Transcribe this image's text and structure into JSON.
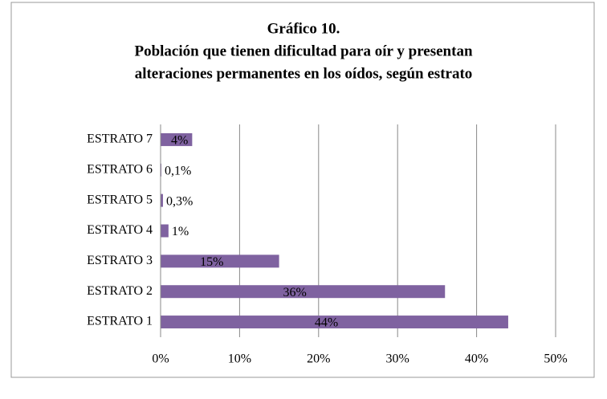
{
  "chart_data": {
    "type": "bar",
    "orientation": "horizontal",
    "title": [
      "Gráfico 10.",
      "Población que tienen dificultad para oír y presentan",
      "alteraciones permanentes en los oídos, según estrato"
    ],
    "categories": [
      "ESTRATO 1",
      "ESTRATO 2",
      "ESTRATO 3",
      "ESTRATO 4",
      "ESTRATO 5",
      "ESTRATO 6",
      "ESTRATO 7"
    ],
    "values": [
      44,
      36,
      15,
      1,
      0.3,
      0.1,
      4
    ],
    "value_labels": [
      "44%",
      "36%",
      "15%",
      "1%",
      "0,3%",
      "0,1%",
      "4%"
    ],
    "color": "#7f62a0",
    "xlim": [
      0,
      50
    ],
    "xticks": [
      {
        "value": 0,
        "label": "0%"
      },
      {
        "value": 10,
        "label": "10%"
      },
      {
        "value": 20,
        "label": "20%"
      },
      {
        "value": 30,
        "label": "30%"
      },
      {
        "value": 40,
        "label": "40%"
      },
      {
        "value": 50,
        "label": "50%"
      }
    ],
    "grid": true
  }
}
